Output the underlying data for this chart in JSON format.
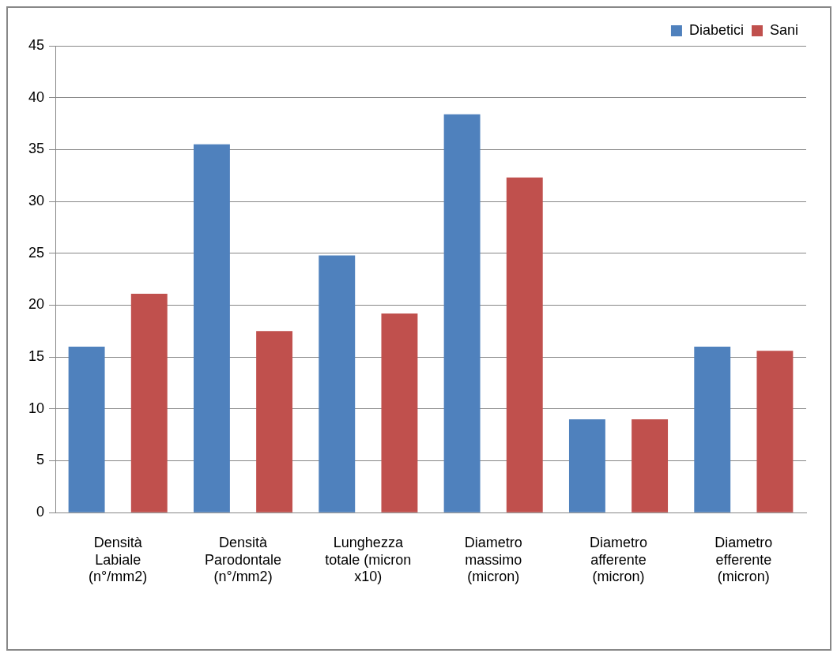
{
  "chart_data": {
    "type": "bar",
    "categories": [
      "Densità Labiale (n°/mm2)",
      "Densità Parodontale (n°/mm2)",
      "Lunghezza totale (micron x10)",
      "Diametro massimo (micron)",
      "Diametro afferente (micron)",
      "Diametro efferente (micron)"
    ],
    "series": [
      {
        "name": "Diabetici",
        "color": "#4f81bd",
        "values": [
          16,
          35.5,
          24.8,
          38.4,
          9,
          16
        ]
      },
      {
        "name": "Sani",
        "color": "#c0504d",
        "values": [
          21.1,
          17.5,
          19.2,
          32.3,
          9,
          15.6
        ]
      }
    ],
    "ylim": [
      0,
      45
    ],
    "yticks": [
      0,
      5,
      10,
      15,
      20,
      25,
      30,
      35,
      40,
      45
    ],
    "grid": "y",
    "legend": "top right"
  }
}
